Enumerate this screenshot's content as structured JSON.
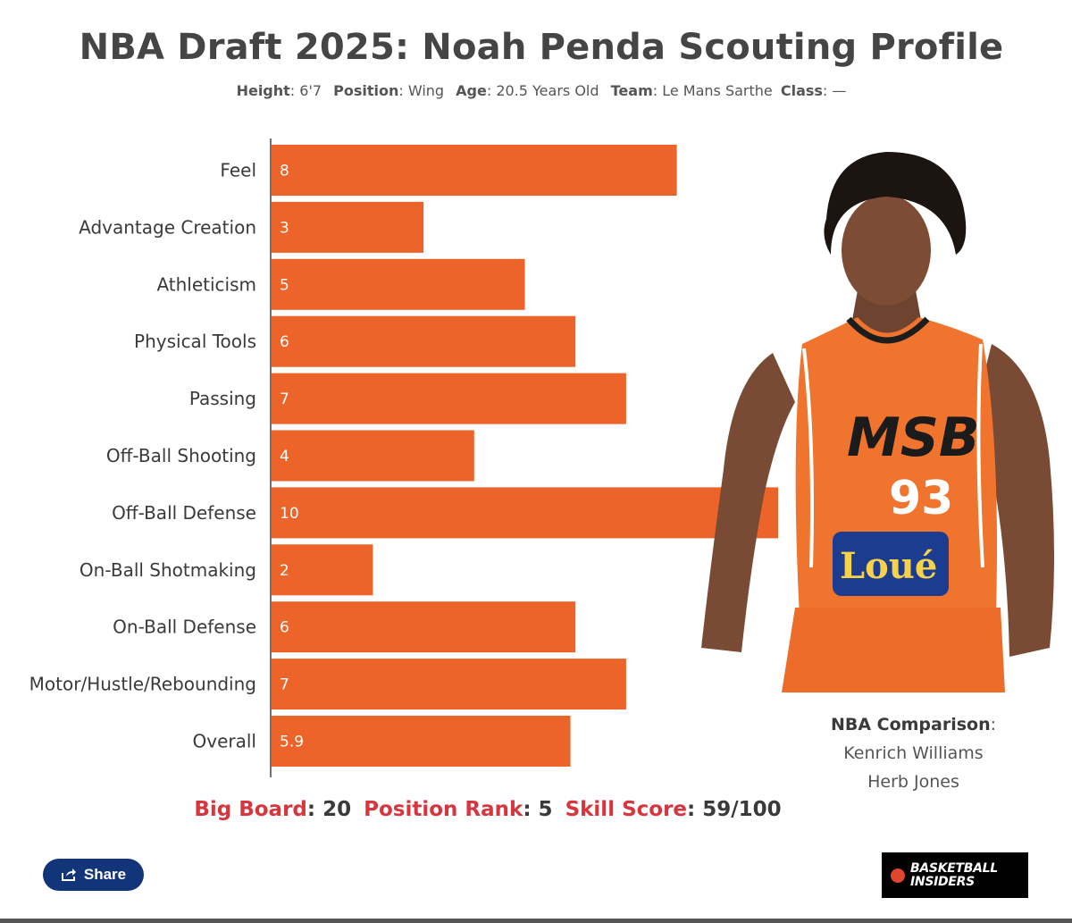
{
  "header": {
    "title": "NBA Draft 2025: Noah Penda Scouting Profile",
    "height_label": "Height",
    "height_value": ": 6'7",
    "position_label": "Position",
    "position_value": ": Wing",
    "age_label": "Age",
    "age_value": ": 20.5 Years Old",
    "team_label": "Team",
    "team_value": ": Le Mans Sarthe",
    "class_label": "Class",
    "class_value": ": —"
  },
  "chart_data": {
    "type": "bar",
    "orientation": "horizontal",
    "categories": [
      "Feel",
      "Advantage Creation",
      "Athleticism",
      "Physical Tools",
      "Passing",
      "Off-Ball Shooting",
      "Off-Ball Defense",
      "On-Ball Shotmaking",
      "On-Ball Defense",
      "Motor/Hustle/Rebounding",
      "Overall"
    ],
    "values": [
      8,
      3,
      5,
      6,
      7,
      4,
      10,
      2,
      6,
      7,
      5.9
    ],
    "value_labels": [
      "8",
      "3",
      "5",
      "6",
      "7",
      "4",
      "10",
      "2",
      "6",
      "7",
      "5.9"
    ],
    "xlim": [
      0,
      10
    ],
    "bar_color": "#ec6429",
    "grid": false
  },
  "comparison": {
    "heading": "NBA Comparison",
    "heading_suffix": ":",
    "players": [
      "Kenrich Williams",
      "Herb Jones"
    ]
  },
  "board": {
    "big_board_label": "Big Board",
    "big_board_value": ": 20",
    "position_rank_label": "Position Rank",
    "position_rank_value": ": 5",
    "skill_score_label": "Skill Score",
    "skill_score_value": ": 59/100"
  },
  "share": {
    "label": "Share"
  },
  "logo": {
    "line1": "BASKETBALL",
    "line2": "INSIDERS"
  },
  "colors": {
    "accent_red": "#d6363e",
    "bar": "#ec6429",
    "share_bg": "#12357a",
    "jersey": "#f0732e"
  }
}
